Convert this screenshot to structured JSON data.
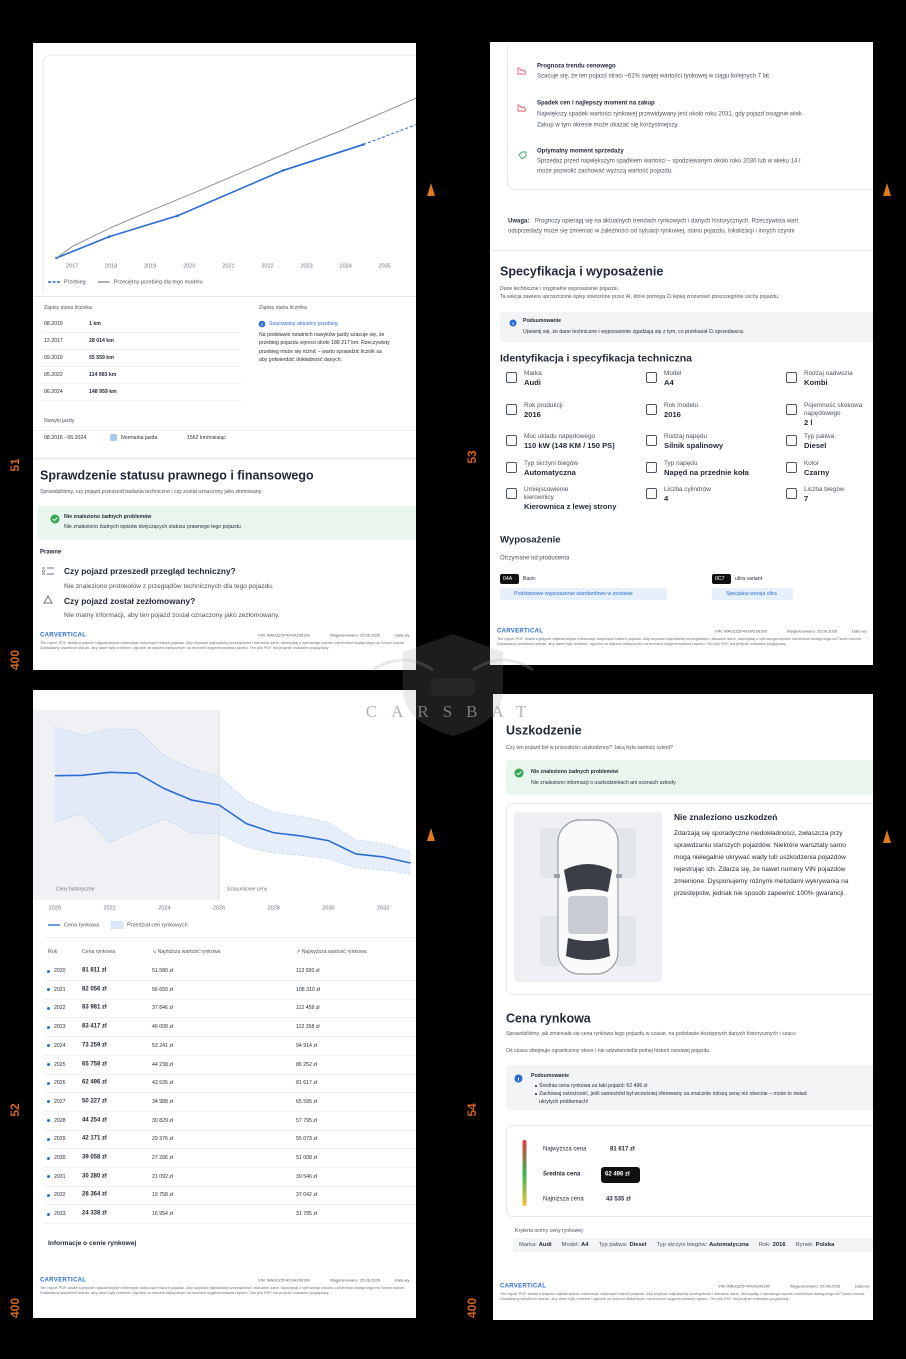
{
  "film": {
    "frame_numbers": [
      "51",
      "53",
      "52",
      "54"
    ],
    "edge_numbers": [
      "400",
      "400",
      "400"
    ],
    "watermark": "CARSBAT"
  },
  "footer": {
    "logo": "CARVERTICAL",
    "vin": "VIN: WAUZZZF4XGA106190",
    "generated": "Wygenerowano: 25.06.2026",
    "date_cut": "Data wy",
    "fine_print": "Ten raport PDF zawiera jedynie najważniejsze informacje dotyczące historii pojazdu. Aby uzyskać najbardziej szczegółowe i aktualne dane, skorzystaj z cyfrowego raportu carVertical dostępnego na Twoim koncie. Dokładamy wszelkich starań, aby dane były rzetelne i zgodne ze stanem faktycznym na moment wygenerowania raportu. Ten plik PDF ma jedynie charakter poglądowy."
  },
  "page1": {
    "mileage_chart": {
      "type": "line",
      "xlim": [
        2016,
        2025.8
      ],
      "ylim": [
        0,
        260000
      ],
      "xticks": [
        2017,
        2018,
        2019,
        2020,
        2021,
        2022,
        2023,
        2024,
        2025
      ],
      "series": [
        {
          "name": "Przebieg",
          "color": "#2b6ed2",
          "markers": true,
          "x": [
            2016.6,
            2017.95,
            2019.7,
            2022.4,
            2024.45
          ],
          "values": [
            1,
            28014,
            55559,
            114983,
            148959
          ]
        },
        {
          "color": "#2b6ed2",
          "dashed": true,
          "x": [
            2024.45,
            2025.8
          ],
          "values": [
            148959,
            175000
          ]
        },
        {
          "name": "Przeciętny przebieg dla tego modelu",
          "color": "#8a8f98",
          "x": [
            2016.6,
            2017,
            2018,
            2019,
            2020,
            2021,
            2022,
            2023,
            2024,
            2025,
            2025.8
          ],
          "values": [
            0,
            15000,
            40000,
            62000,
            83000,
            105000,
            127000,
            149000,
            170000,
            192000,
            210000
          ]
        }
      ]
    },
    "odometer": {
      "title": "Zapisy stanu licznika",
      "records": [
        {
          "date": "08.2016",
          "mileage": "1 km"
        },
        {
          "date": "12.2017",
          "mileage": "28 014 km"
        },
        {
          "date": "09.2019",
          "mileage": "55 559 km"
        },
        {
          "date": "05.2022",
          "mileage": "114 983 km"
        },
        {
          "date": "06.2024",
          "mileage": "148 959 km"
        }
      ]
    },
    "estimate": {
      "title": "Zapisy stanu licznika",
      "badge": "Szacowany aktualny przebieg",
      "lines": [
        "Na podstawie ostatnich nawyków jazdy szacuje się, że",
        "przebieg pojazdu wynosi około 188 217 km. Rzeczywisty",
        "przebieg może się różnić – warto sprawdzić licznik sa",
        "aby potwierdzić dokładność danych."
      ]
    },
    "habits": {
      "title": "Nawyki jazdy",
      "period": "08.2016 - 06.2024",
      "style": "Normalna jazda",
      "rate": "1562 km/miesiąc"
    },
    "legal": {
      "title": "Sprawdzenie statusu prawnego i finansowego",
      "subtitle": "Sprawdziliśmy, czy pojazd przeszedł badania techniczne i czy został oznaczony jako złomowany.",
      "alert_title": "Nie znaleziono żadnych problemów",
      "alert_text": "Nie znaleziono żadnych wpisów dotyczących statusu prawnego tego pojazdu",
      "section": "Prawne",
      "questions": [
        {
          "q": "Czy pojazd przeszedł przegląd techniczny?",
          "a": "Nie znaleziono protokołów z przeglądów technicznych dla tego pojazdu."
        },
        {
          "q": "Czy pojazd został zezłomowany?",
          "a": "Nie mamy informacji, aby ten pojazd został oznaczony jako zezłomowany."
        }
      ]
    }
  },
  "page2": {
    "forecast": [
      {
        "title": "Prognoza trendu cenowego",
        "lines": [
          "Szacuje się, że ten pojazd straci ~62% swojej wartości rynkowej w ciągu kolejnych 7 lat."
        ]
      },
      {
        "title": "Spadek cen i najlepszy moment na zakup",
        "lines": [
          "Największy spadek wartości rynkowej przewidywany jest około roku 2031, gdy pojazd osiągnie wiek",
          "Zakup w tym okresie może okazać się korzystniejszy."
        ]
      },
      {
        "title": "Optymalny moment sprzedaży",
        "lines": [
          "Sprzedaż przed największym spadkiem wartości – spodziewanym około roku 2030 lub w wieku 14 l",
          "może pozwolić zachować wyższą wartość pojazdu."
        ]
      }
    ],
    "note": {
      "label": "Uwaga:",
      "lines": [
        "Prognozy opierają się na aktualnych trendach rynkowych i danych historycznych. Rzeczywista wart",
        "odsprzedaży może się zmieniać w zależności od sytuacji rynkowej, stanu pojazdu, lokalizacji i innych czynni"
      ]
    },
    "spec_title": "Specyfikacja i wyposażenie",
    "spec_subtitle": [
      "Dane techniczne i oryginalne wyposażenie pojazdu.",
      "Ta sekcja zawiera uproszczone opisy stworzone przez AI, które pomogą Ci lepiej zrozumieć poszczególne cechy pojazdu."
    ],
    "summary": {
      "title": "Podsumowanie",
      "text": "Upewnij się, że dane techniczne i wyposażenie zgadzają się z tym, co przekazał Ci sprzedawca."
    },
    "ident_title": "Identyfikacja i specyfikacja techniczna",
    "specs": [
      [
        {
          "label": "Marka",
          "value": "Audi"
        },
        {
          "label": "Model",
          "value": "A4"
        },
        {
          "label": "Rodzaj nadwozia",
          "value": "Kombi"
        }
      ],
      [
        {
          "label": "Rok produkcji",
          "value": "2016"
        },
        {
          "label": "Rok modelu",
          "value": "2016"
        },
        {
          "label": "Pojemność skokowa napędowego",
          "value": "2 l"
        }
      ],
      [
        {
          "label": "Moc układu napędowego",
          "value": "110 kW (148 KM / 150 PS)"
        },
        {
          "label": "Rodzaj napędu",
          "value": "Silnik spalinowy"
        },
        {
          "label": "Typ paliwa",
          "value": "Diesel"
        }
      ],
      [
        {
          "label": "Typ skrzyni biegów",
          "value": "Automatyczna"
        },
        {
          "label": "Typ napędu",
          "value": "Napęd na przednie koła"
        },
        {
          "label": "Kolor",
          "value": "Czarny"
        }
      ],
      [
        {
          "label": "Umiejscowienie kierownicy",
          "value": "Kierownica z lewej strony"
        },
        {
          "label": "Liczba cylindrów",
          "value": "4"
        },
        {
          "label": "Liczba biegów",
          "value": "7"
        }
      ]
    ],
    "equipment": {
      "title": "Wyposażenie",
      "subtitle": "Otrzymane od producenta",
      "items": [
        {
          "code": "04A",
          "name": "Basic",
          "desc": "Podstawowe wyposażenie standardowe w zestawie"
        },
        {
          "code": "0C7",
          "name": "ultra variant",
          "desc": "Specjalna wersja ultra"
        }
      ]
    }
  },
  "page3": {
    "price_chart": {
      "type": "line",
      "x": [
        2020,
        2021,
        2022,
        2023,
        2024,
        2025,
        2026,
        2027,
        2028,
        2029,
        2030,
        2031,
        2032,
        2033
      ],
      "xlim": [
        2019.2,
        2033.2
      ],
      "ylim": [
        0,
        125000
      ],
      "xticks": [
        2020,
        2022,
        2024,
        2026,
        2028,
        2030,
        2032
      ],
      "forecast_start": 2026,
      "region_labels": [
        "Ceny historyczne",
        "Szacunkowe ceny"
      ],
      "series": [
        {
          "name": "Cena rynkowa",
          "color": "#2b6ed2",
          "values": [
            81811,
            82056,
            83981,
            83417,
            73259,
            65758,
            62496,
            50227,
            44254,
            42171,
            39058,
            30280,
            28364,
            24338
          ]
        }
      ],
      "band": {
        "name": "Przedział cen rynkowych",
        "color": "#dbe7f7",
        "low": [
          51580,
          56650,
          37846,
          46008,
          53241,
          44238,
          43535,
          34988,
          30829,
          29376,
          27206,
          21092,
          19758,
          16954
        ],
        "high": [
          113920,
          108310,
          112459,
          112358,
          94914,
          86252,
          81617,
          65595,
          57795,
          55073,
          51008,
          39546,
          37042,
          31785
        ]
      }
    },
    "table": {
      "header": [
        "Rok",
        "Cena rynkowa",
        "↘ Najniższa wartość rynkowa",
        "↗ Najwyższa wartość rynkowa"
      ],
      "rows": [
        [
          "2020",
          "81 811 zł",
          "51 580 zł",
          "113 920 zł"
        ],
        [
          "2021",
          "82 056 zł",
          "56 650 zł",
          "108 310 zł"
        ],
        [
          "2022",
          "83 981 zł",
          "37 846 zł",
          "112 459 zł"
        ],
        [
          "2023",
          "83 417 zł",
          "46 008 zł",
          "112 358 zł"
        ],
        [
          "2024",
          "73 259 zł",
          "53 241 zł",
          "94 914 zł"
        ],
        [
          "2025",
          "65 758 zł",
          "44 238 zł",
          "86 252 zł"
        ],
        [
          "2026",
          "62 496 zł",
          "43 535 zł",
          "81 617 zł"
        ],
        [
          "2027",
          "50 227 zł",
          "34 988 zł",
          "65 595 zł"
        ],
        [
          "2028",
          "44 254 zł",
          "30 829 zł",
          "57 795 zł"
        ],
        [
          "2029",
          "42 171 zł",
          "29 376 zł",
          "55 073 zł"
        ],
        [
          "2030",
          "39 058 zł",
          "27 206 zł",
          "51 008 zł"
        ],
        [
          "2031",
          "30 280 zł",
          "21 092 zł",
          "39 546 zł"
        ],
        [
          "2032",
          "28 364 zł",
          "19 758 zł",
          "37 042 zł"
        ],
        [
          "2033",
          "24 338 zł",
          "16 954 zł",
          "31 785 zł"
        ]
      ]
    },
    "info_link": "Informacje o cenie rynkowej"
  },
  "page4": {
    "damage": {
      "title": "Uszkodzenie",
      "subtitle": "Czy ten pojazd był w przeszłości uszkodzony? Jaką była wartość szkód?",
      "alert_title": "Nie znaleziono żadnych problemów",
      "alert_text": "Nie znaleziono informacji o uszkodzeniach ani ocenach szkody",
      "card_title": "Nie znaleziono uszkodzeń",
      "card_lines": [
        "Zdarzają się sporadyczne niedokładności, zwłaszcza przy",
        "sprawdzaniu starszych pojazdów. Niektóre warsztaty samo",
        "mogą nielegalnie ukrywać wady lub uszkodzenia pojazdów",
        "rejestrując ich. Zdarza się, że nawet numery VIN pojazdów",
        "zmienione. Dysponujemy różnymi metodami wykrywania na",
        "przestępstw, jednak nie sposób zapewnić 100% gwarancji."
      ]
    },
    "market": {
      "title": "Cena rynkowa",
      "lines": [
        "Sprawdziliśmy, jak zmieniała się cena rynkowa tego pojazdu w czasie, na podstawie dostępnych danych historycznych i szacu",
        "Oś czasu obejmuje ograniczony okres i nie odzwierciedla pełnej historii cenowej pojazdu."
      ],
      "summary_title": "Podsumowanie",
      "bullets": [
        [
          "Średnia cena rynkowa za taki pojazd: 62 496 zł"
        ],
        [
          "Zachowaj ostrożność, jeśli samochód był wcześniej oferowany za znacznie niższą cenę niż obecnie – może to świad",
          "ukrytych problemach!"
        ]
      ],
      "price_scale": [
        {
          "label": "Najwyższa cena",
          "value": "81 617 zł"
        },
        {
          "label": "Średnia cena",
          "value": "62 496 zł"
        },
        {
          "label": "Najniższa cena",
          "value": "43 535 zł"
        }
      ],
      "criteria": {
        "title": "Kryteria oceny ceny rynkowej:",
        "items": [
          {
            "label": "Marka:",
            "value": "Audi"
          },
          {
            "label": "Model:",
            "value": "A4"
          },
          {
            "label": "Typ paliwa:",
            "value": "Diesel"
          },
          {
            "label": "Typ skrzyni biegów:",
            "value": "Automatyczna"
          },
          {
            "label": "Rok:",
            "value": "2016"
          },
          {
            "label": "Rynek:",
            "value": "Polska"
          }
        ]
      }
    }
  }
}
